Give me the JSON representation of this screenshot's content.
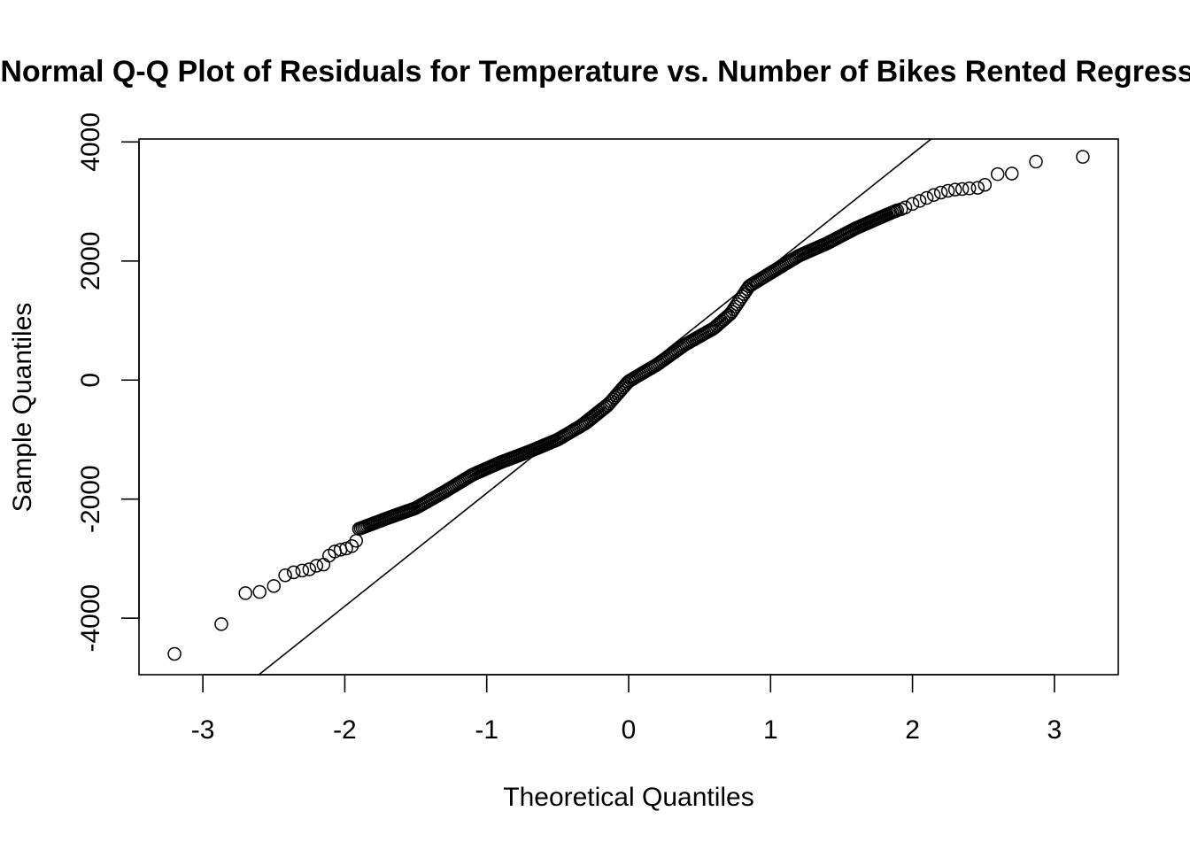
{
  "chart_data": {
    "type": "scatter",
    "title": "Normal Q-Q Plot of Residuals for Temperature vs. Number of Bikes Rented Regression",
    "xlabel": "Theoretical Quantiles",
    "ylabel": "Sample Quantiles",
    "xlim": [
      -3.45,
      3.45
    ],
    "ylim": [
      -4950,
      4050
    ],
    "xticks": [
      -3,
      -2,
      -1,
      0,
      1,
      2,
      3
    ],
    "xtick_labels": [
      "-3",
      "-2",
      "-1",
      "0",
      "1",
      "2",
      "3"
    ],
    "yticks": [
      -4000,
      -2000,
      0,
      2000,
      4000
    ],
    "ytick_labels": [
      "-4000",
      "-2000",
      "0",
      "2000",
      "4000"
    ],
    "reference_line": {
      "intercept": 0,
      "slope": 1900
    },
    "marker": "open-circle",
    "grid": false,
    "legend": "none",
    "tail_points": [
      [
        -3.2,
        -4600
      ],
      [
        -2.87,
        -4100
      ],
      [
        -2.7,
        -3580
      ],
      [
        -2.6,
        -3560
      ],
      [
        -2.5,
        -3460
      ],
      [
        -2.42,
        -3280
      ],
      [
        -2.36,
        -3230
      ],
      [
        -2.3,
        -3200
      ],
      [
        -2.25,
        -3180
      ],
      [
        -2.2,
        -3120
      ],
      [
        -2.15,
        -3100
      ],
      [
        -2.11,
        -2950
      ],
      [
        -2.07,
        -2880
      ],
      [
        -2.03,
        -2850
      ],
      [
        -1.99,
        -2830
      ],
      [
        -1.95,
        -2790
      ],
      [
        -1.92,
        -2700
      ],
      [
        1.92,
        2870
      ],
      [
        1.95,
        2900
      ],
      [
        2.0,
        2960
      ],
      [
        2.05,
        3010
      ],
      [
        2.1,
        3060
      ],
      [
        2.15,
        3110
      ],
      [
        2.2,
        3150
      ],
      [
        2.25,
        3180
      ],
      [
        2.3,
        3200
      ],
      [
        2.35,
        3210
      ],
      [
        2.4,
        3220
      ],
      [
        2.46,
        3230
      ],
      [
        2.51,
        3280
      ],
      [
        2.6,
        3460
      ],
      [
        2.7,
        3470
      ],
      [
        2.87,
        3670
      ],
      [
        3.2,
        3750
      ]
    ],
    "body_curve": [
      [
        -1.9,
        -2500
      ],
      [
        -1.7,
        -2320
      ],
      [
        -1.5,
        -2150
      ],
      [
        -1.3,
        -1880
      ],
      [
        -1.1,
        -1590
      ],
      [
        -0.9,
        -1380
      ],
      [
        -0.7,
        -1200
      ],
      [
        -0.5,
        -1000
      ],
      [
        -0.3,
        -720
      ],
      [
        -0.15,
        -430
      ],
      [
        0.0,
        -20
      ],
      [
        0.2,
        260
      ],
      [
        0.4,
        600
      ],
      [
        0.6,
        870
      ],
      [
        0.72,
        1120
      ],
      [
        0.85,
        1580
      ],
      [
        1.0,
        1800
      ],
      [
        1.2,
        2090
      ],
      [
        1.4,
        2300
      ],
      [
        1.6,
        2550
      ],
      [
        1.8,
        2760
      ],
      [
        1.9,
        2860
      ]
    ]
  }
}
